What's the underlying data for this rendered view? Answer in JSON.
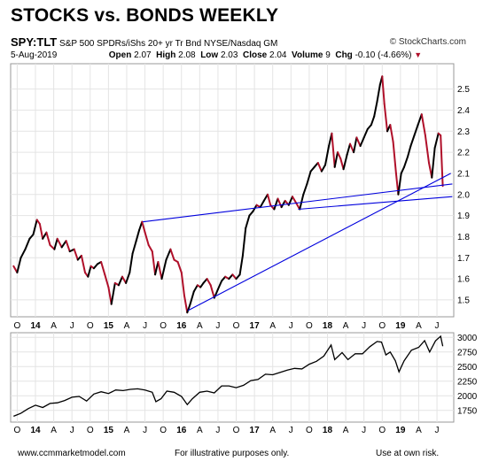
{
  "header": {
    "title": "STOCKS vs. BONDS WEEKLY",
    "symbol": "SPY:TLT",
    "description": "S&P 500 SPDRs/iShs 20+ yr Tr Bnd NYSE/Nasdaq GM",
    "copyright": "© StockCharts.com",
    "date": "5-Aug-2019",
    "open_label": "Open",
    "open": "2.07",
    "high_label": "High",
    "high": "2.08",
    "low_label": "Low",
    "low": "2.03",
    "close_label": "Close",
    "close": "2.04",
    "volume_label": "Volume",
    "volume": "9",
    "chg_label": "Chg",
    "chg": "-0.10 (-4.66%)",
    "down_arrow": "▼"
  },
  "footer": {
    "website": "www.ccmmarketmodel.com",
    "disclaimer": "For illustrative purposes only.",
    "risk": "Use at own risk."
  },
  "colors": {
    "ratio_up": "#000000",
    "ratio_down": "#b0102a",
    "trendline": "#0000dd",
    "grid": "#e4e4e4",
    "sp500": "#000000"
  },
  "chart_data": [
    {
      "type": "line",
      "name": "SPY:TLT ratio",
      "y_axis_position": "right",
      "ylim": [
        1.42,
        2.62
      ],
      "y_ticks": [
        "1.5",
        "1.6",
        "1.7",
        "1.8",
        "1.9",
        "2.0",
        "2.1",
        "2.2",
        "2.3",
        "2.4",
        "2.5"
      ],
      "x_ticks": [
        "O",
        "14",
        "A",
        "J",
        "O",
        "15",
        "A",
        "J",
        "O",
        "16",
        "A",
        "J",
        "O",
        "17",
        "A",
        "J",
        "O",
        "18",
        "A",
        "J",
        "O",
        "19",
        "A",
        "J"
      ],
      "grid": true,
      "series": {
        "points": [
          [
            2013.7,
            1.66
          ],
          [
            2013.75,
            1.63
          ],
          [
            2013.8,
            1.7
          ],
          [
            2013.86,
            1.74
          ],
          [
            2013.92,
            1.79
          ],
          [
            2013.97,
            1.81
          ],
          [
            2014.02,
            1.88
          ],
          [
            2014.06,
            1.86
          ],
          [
            2014.1,
            1.79
          ],
          [
            2014.15,
            1.82
          ],
          [
            2014.2,
            1.76
          ],
          [
            2014.26,
            1.74
          ],
          [
            2014.3,
            1.79
          ],
          [
            2014.36,
            1.75
          ],
          [
            2014.42,
            1.78
          ],
          [
            2014.47,
            1.73
          ],
          [
            2014.53,
            1.74
          ],
          [
            2014.58,
            1.69
          ],
          [
            2014.63,
            1.71
          ],
          [
            2014.68,
            1.63
          ],
          [
            2014.72,
            1.61
          ],
          [
            2014.76,
            1.66
          ],
          [
            2014.8,
            1.65
          ],
          [
            2014.85,
            1.67
          ],
          [
            2014.9,
            1.68
          ],
          [
            2014.95,
            1.62
          ],
          [
            2015.0,
            1.56
          ],
          [
            2015.04,
            1.48
          ],
          [
            2015.09,
            1.58
          ],
          [
            2015.14,
            1.57
          ],
          [
            2015.19,
            1.61
          ],
          [
            2015.24,
            1.58
          ],
          [
            2015.29,
            1.63
          ],
          [
            2015.33,
            1.72
          ],
          [
            2015.38,
            1.78
          ],
          [
            2015.42,
            1.83
          ],
          [
            2015.46,
            1.87
          ],
          [
            2015.5,
            1.82
          ],
          [
            2015.55,
            1.76
          ],
          [
            2015.6,
            1.73
          ],
          [
            2015.64,
            1.62
          ],
          [
            2015.68,
            1.68
          ],
          [
            2015.73,
            1.6
          ],
          [
            2015.79,
            1.69
          ],
          [
            2015.85,
            1.74
          ],
          [
            2015.9,
            1.69
          ],
          [
            2015.95,
            1.68
          ],
          [
            2016.0,
            1.63
          ],
          [
            2016.04,
            1.52
          ],
          [
            2016.08,
            1.44
          ],
          [
            2016.12,
            1.48
          ],
          [
            2016.17,
            1.54
          ],
          [
            2016.22,
            1.57
          ],
          [
            2016.26,
            1.56
          ],
          [
            2016.3,
            1.58
          ],
          [
            2016.35,
            1.6
          ],
          [
            2016.4,
            1.57
          ],
          [
            2016.45,
            1.51
          ],
          [
            2016.5,
            1.55
          ],
          [
            2016.55,
            1.59
          ],
          [
            2016.6,
            1.61
          ],
          [
            2016.65,
            1.6
          ],
          [
            2016.7,
            1.62
          ],
          [
            2016.75,
            1.6
          ],
          [
            2016.8,
            1.62
          ],
          [
            2016.84,
            1.71
          ],
          [
            2016.88,
            1.84
          ],
          [
            2016.93,
            1.9
          ],
          [
            2016.98,
            1.92
          ],
          [
            2017.03,
            1.95
          ],
          [
            2017.08,
            1.94
          ],
          [
            2017.13,
            1.97
          ],
          [
            2017.18,
            2.0
          ],
          [
            2017.22,
            1.95
          ],
          [
            2017.27,
            1.93
          ],
          [
            2017.32,
            1.98
          ],
          [
            2017.37,
            1.94
          ],
          [
            2017.42,
            1.97
          ],
          [
            2017.47,
            1.95
          ],
          [
            2017.52,
            1.99
          ],
          [
            2017.57,
            1.96
          ],
          [
            2017.62,
            1.93
          ],
          [
            2017.67,
            2.0
          ],
          [
            2017.72,
            2.05
          ],
          [
            2017.77,
            2.11
          ],
          [
            2017.82,
            2.13
          ],
          [
            2017.87,
            2.15
          ],
          [
            2017.92,
            2.11
          ],
          [
            2017.97,
            2.14
          ],
          [
            2018.02,
            2.23
          ],
          [
            2018.06,
            2.29
          ],
          [
            2018.1,
            2.13
          ],
          [
            2018.14,
            2.2
          ],
          [
            2018.18,
            2.17
          ],
          [
            2018.22,
            2.12
          ],
          [
            2018.27,
            2.19
          ],
          [
            2018.31,
            2.24
          ],
          [
            2018.36,
            2.2
          ],
          [
            2018.4,
            2.27
          ],
          [
            2018.45,
            2.23
          ],
          [
            2018.5,
            2.27
          ],
          [
            2018.55,
            2.31
          ],
          [
            2018.6,
            2.33
          ],
          [
            2018.64,
            2.37
          ],
          [
            2018.68,
            2.44
          ],
          [
            2018.72,
            2.52
          ],
          [
            2018.75,
            2.56
          ],
          [
            2018.78,
            2.43
          ],
          [
            2018.82,
            2.3
          ],
          [
            2018.86,
            2.33
          ],
          [
            2018.9,
            2.25
          ],
          [
            2018.94,
            2.1
          ],
          [
            2018.97,
            2.0
          ],
          [
            2019.01,
            2.1
          ],
          [
            2019.05,
            2.13
          ],
          [
            2019.1,
            2.18
          ],
          [
            2019.14,
            2.23
          ],
          [
            2019.19,
            2.28
          ],
          [
            2019.24,
            2.33
          ],
          [
            2019.29,
            2.38
          ],
          [
            2019.34,
            2.28
          ],
          [
            2019.39,
            2.15
          ],
          [
            2019.43,
            2.08
          ],
          [
            2019.47,
            2.22
          ],
          [
            2019.52,
            2.29
          ],
          [
            2019.55,
            2.28
          ],
          [
            2019.58,
            2.04
          ]
        ]
      },
      "trendlines": [
        {
          "x": [
            2015.47,
            2019.71
          ],
          "y": [
            1.87,
            2.05
          ]
        },
        {
          "x": [
            2017.6,
            2019.71
          ],
          "y": [
            1.93,
            1.99
          ]
        },
        {
          "x": [
            2016.09,
            2019.69
          ],
          "y": [
            1.45,
            2.1
          ]
        }
      ]
    },
    {
      "type": "line",
      "name": "S&P 500",
      "y_axis_position": "right",
      "ylim": [
        1550,
        3080
      ],
      "y_ticks": [
        "1750",
        "2000",
        "2250",
        "2500",
        "2750",
        "3000"
      ],
      "x_ticks": [
        "O",
        "14",
        "A",
        "J",
        "O",
        "15",
        "A",
        "J",
        "O",
        "16",
        "A",
        "J",
        "O",
        "17",
        "A",
        "J",
        "O",
        "18",
        "A",
        "J",
        "O",
        "19",
        "A",
        "J"
      ],
      "grid": true,
      "series": {
        "points": [
          [
            2013.7,
            1650
          ],
          [
            2013.8,
            1700
          ],
          [
            2013.9,
            1780
          ],
          [
            2014.0,
            1840
          ],
          [
            2014.1,
            1800
          ],
          [
            2014.2,
            1870
          ],
          [
            2014.3,
            1880
          ],
          [
            2014.4,
            1920
          ],
          [
            2014.5,
            1975
          ],
          [
            2014.6,
            1990
          ],
          [
            2014.7,
            1910
          ],
          [
            2014.8,
            2030
          ],
          [
            2014.9,
            2070
          ],
          [
            2015.0,
            2040
          ],
          [
            2015.1,
            2100
          ],
          [
            2015.2,
            2090
          ],
          [
            2015.3,
            2110
          ],
          [
            2015.4,
            2120
          ],
          [
            2015.5,
            2100
          ],
          [
            2015.6,
            2060
          ],
          [
            2015.65,
            1900
          ],
          [
            2015.72,
            1950
          ],
          [
            2015.8,
            2080
          ],
          [
            2015.9,
            2060
          ],
          [
            2016.0,
            1990
          ],
          [
            2016.08,
            1850
          ],
          [
            2016.15,
            1950
          ],
          [
            2016.25,
            2060
          ],
          [
            2016.35,
            2080
          ],
          [
            2016.45,
            2050
          ],
          [
            2016.55,
            2170
          ],
          [
            2016.65,
            2170
          ],
          [
            2016.75,
            2140
          ],
          [
            2016.85,
            2180
          ],
          [
            2016.95,
            2260
          ],
          [
            2017.05,
            2280
          ],
          [
            2017.15,
            2370
          ],
          [
            2017.25,
            2360
          ],
          [
            2017.35,
            2400
          ],
          [
            2017.45,
            2440
          ],
          [
            2017.55,
            2470
          ],
          [
            2017.65,
            2460
          ],
          [
            2017.75,
            2540
          ],
          [
            2017.85,
            2590
          ],
          [
            2017.95,
            2680
          ],
          [
            2018.05,
            2870
          ],
          [
            2018.1,
            2620
          ],
          [
            2018.2,
            2740
          ],
          [
            2018.28,
            2620
          ],
          [
            2018.38,
            2720
          ],
          [
            2018.48,
            2720
          ],
          [
            2018.58,
            2840
          ],
          [
            2018.68,
            2930
          ],
          [
            2018.74,
            2920
          ],
          [
            2018.8,
            2700
          ],
          [
            2018.86,
            2750
          ],
          [
            2018.93,
            2600
          ],
          [
            2018.98,
            2410
          ],
          [
            2019.05,
            2600
          ],
          [
            2019.15,
            2780
          ],
          [
            2019.25,
            2830
          ],
          [
            2019.33,
            2945
          ],
          [
            2019.4,
            2750
          ],
          [
            2019.48,
            2940
          ],
          [
            2019.55,
            3020
          ],
          [
            2019.58,
            2850
          ]
        ]
      }
    }
  ]
}
